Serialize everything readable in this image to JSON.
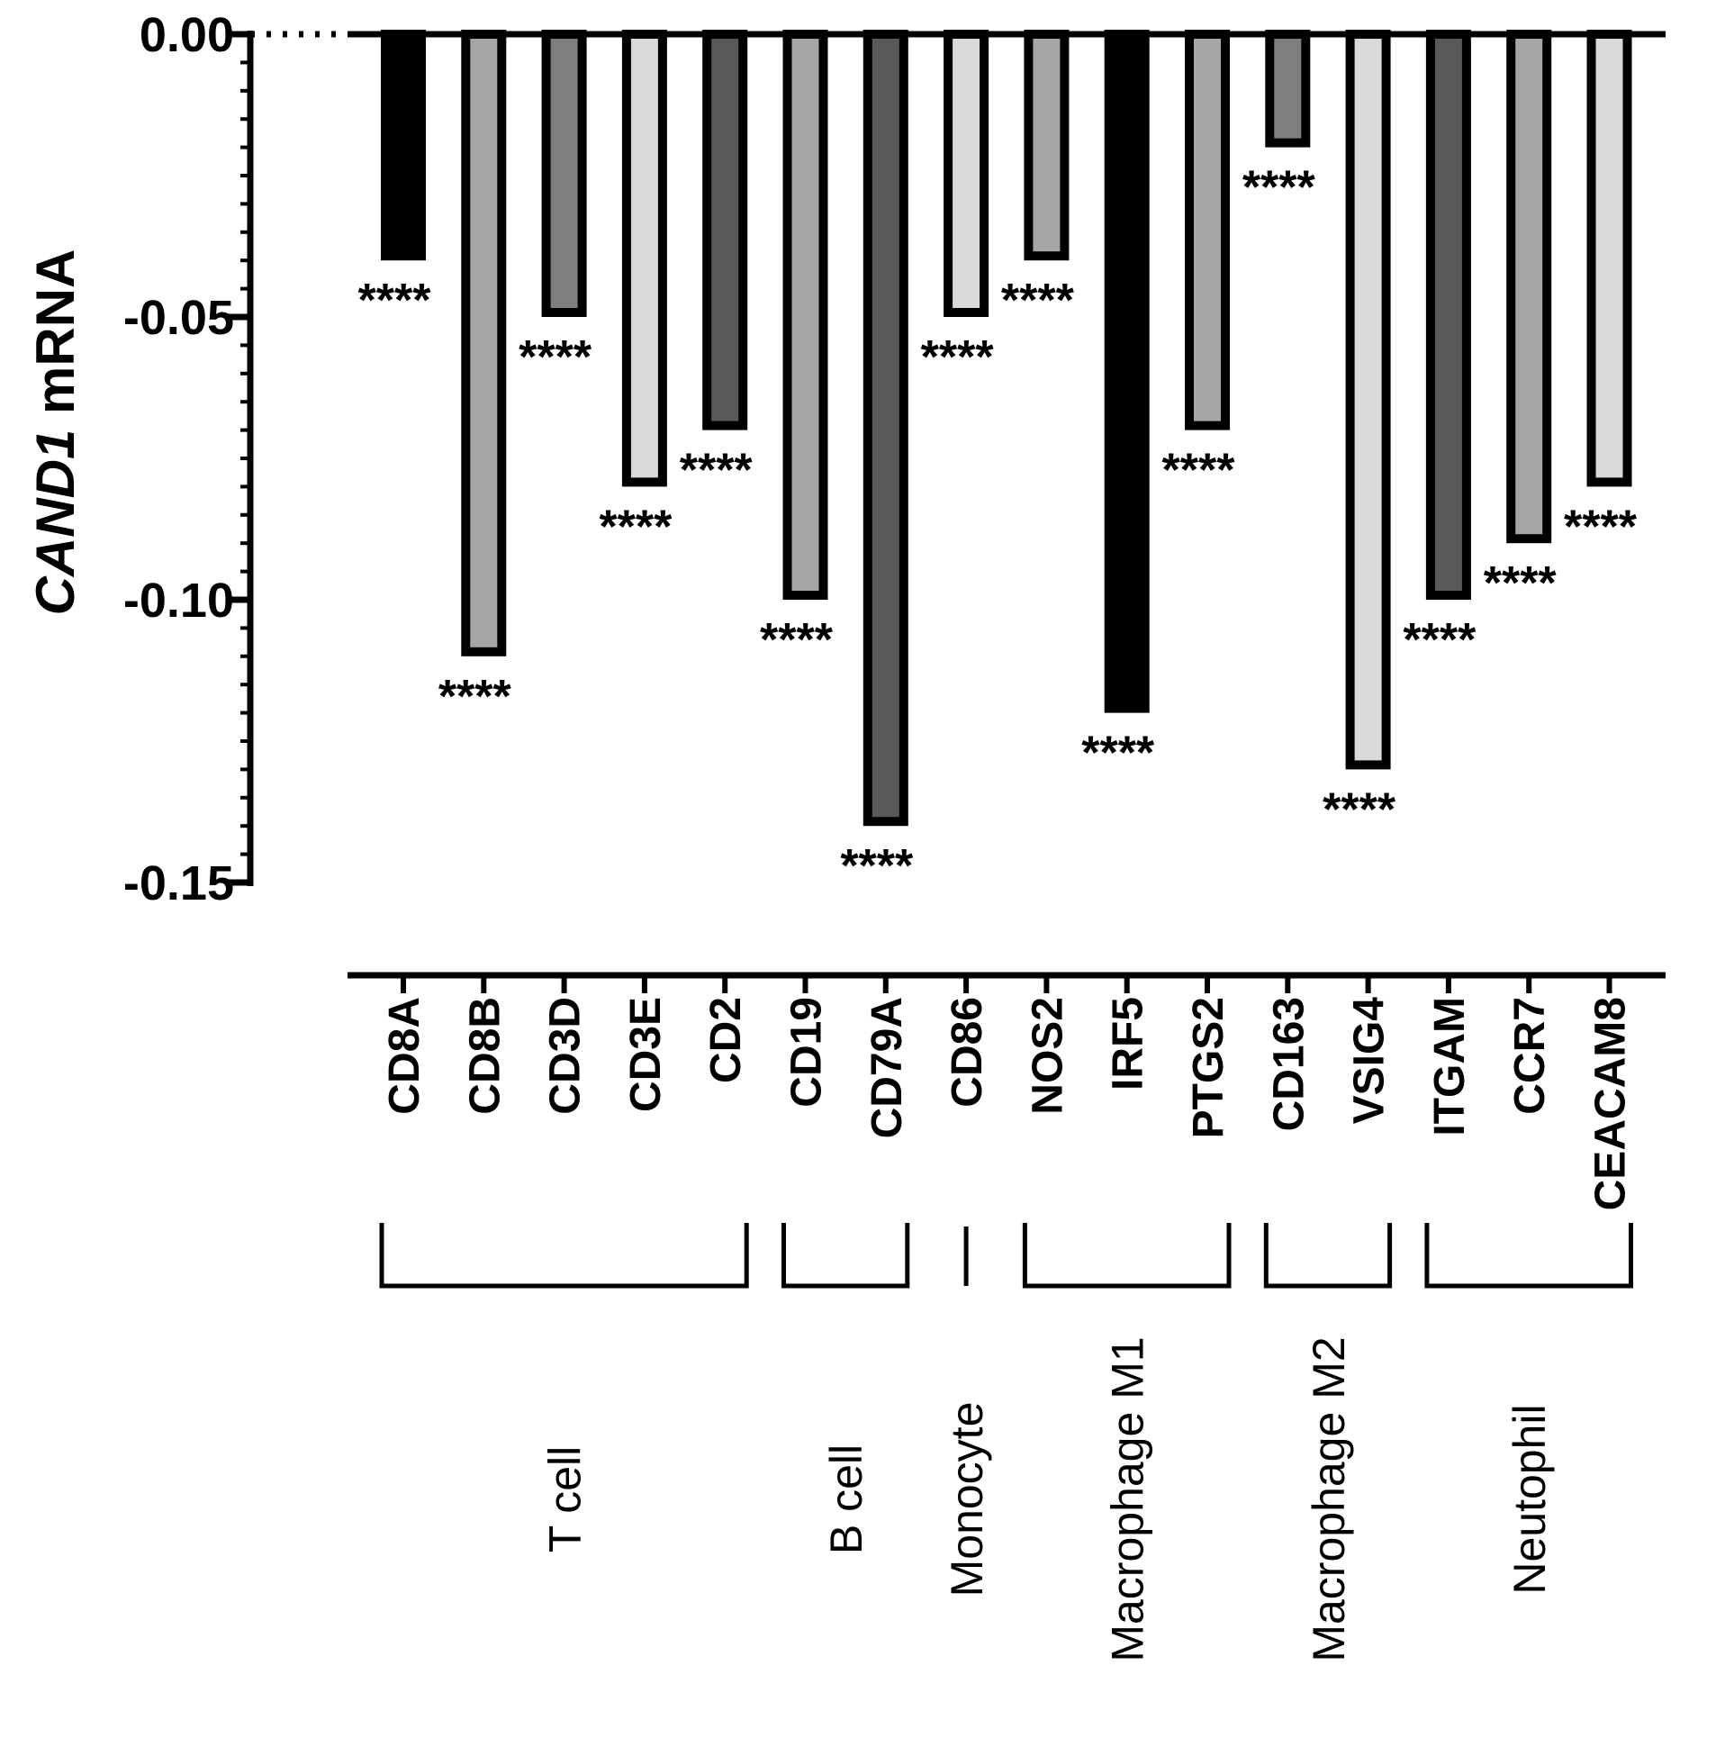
{
  "chart_data": {
    "type": "bar",
    "title": "",
    "ylabel_italic": "CAND1",
    "ylabel_rest": " mRNA",
    "xlabel": "",
    "ylim": [
      -0.15,
      0.0
    ],
    "yticks": [
      0.0,
      -0.05,
      -0.1,
      -0.15
    ],
    "ytick_labels": [
      "0.00",
      "-0.05",
      "-0.10",
      "-0.15"
    ],
    "categories": [
      "CD8A",
      "CD8B",
      "CD3D",
      "CD3E",
      "CD2",
      "CD19",
      "CD79A",
      "CD86",
      "NOS2",
      "IRF5",
      "PTGS2",
      "CD163",
      "VSIG4",
      "ITGAM",
      "CCR7",
      "CEACAM8"
    ],
    "values": [
      -0.04,
      -0.11,
      -0.05,
      -0.08,
      -0.07,
      -0.1,
      -0.14,
      -0.05,
      -0.04,
      -0.12,
      -0.07,
      -0.02,
      -0.13,
      -0.1,
      -0.09,
      -0.08
    ],
    "significance": [
      "****",
      "****",
      "****",
      "****",
      "****",
      "****",
      "****",
      "****",
      "****",
      "****",
      "****",
      "****",
      "****",
      "****",
      "****",
      "****"
    ],
    "fill_colors": [
      "#000000",
      "#a6a6a6",
      "#7f7f7f",
      "#d9d9d9",
      "#595959",
      "#a6a6a6",
      "#595959",
      "#d9d9d9",
      "#a6a6a6",
      "#000000",
      "#a6a6a6",
      "#7f7f7f",
      "#d9d9d9",
      "#595959",
      "#a6a6a6",
      "#d9d9d9"
    ],
    "outline_color": "#000000",
    "groups": [
      {
        "name": "T cell",
        "first": 0,
        "last": 4
      },
      {
        "name": "B cell",
        "first": 5,
        "last": 6
      },
      {
        "name": "Monocyte",
        "first": 7,
        "last": 7
      },
      {
        "name": "Macrophage M1",
        "first": 8,
        "last": 10
      },
      {
        "name": "Macrophage M2",
        "first": 11,
        "last": 12
      },
      {
        "name": "Neutophil",
        "first": 13,
        "last": 15
      }
    ]
  }
}
